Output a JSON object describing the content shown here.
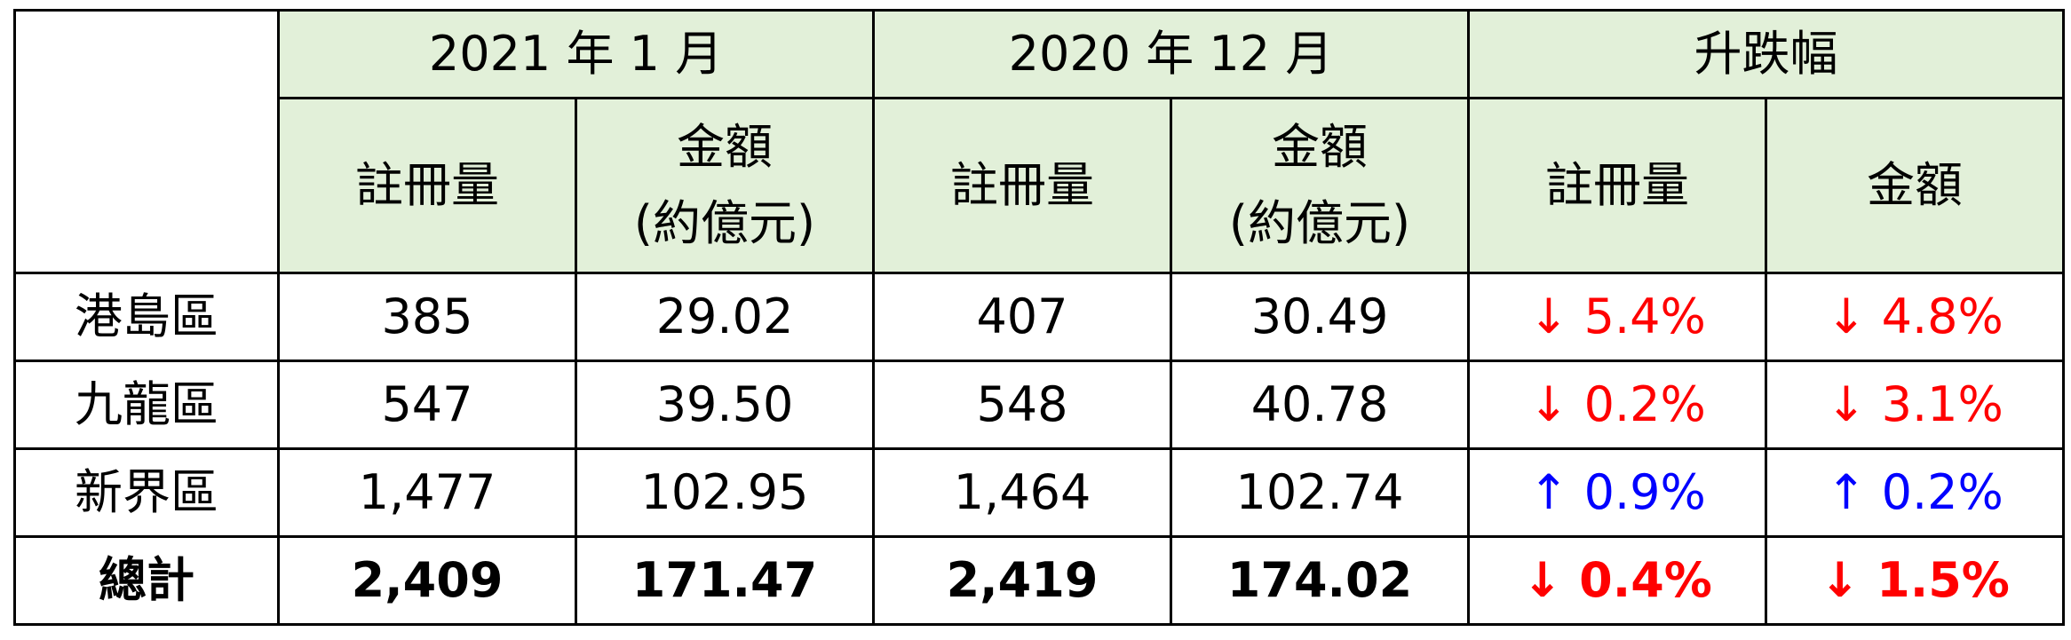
{
  "table": {
    "header": {
      "group_labels": [
        "2021 年 1 月",
        "2020 年 12 月",
        "升跌幅"
      ],
      "sub_labels": [
        [
          "註冊量"
        ],
        [
          "金額",
          "(約億元)"
        ],
        [
          "註冊量"
        ],
        [
          "金額",
          "(約億元)"
        ],
        [
          "註冊量"
        ],
        [
          "金額"
        ]
      ]
    },
    "rows": [
      [
        "港島區",
        "385",
        "29.02",
        "407",
        "30.49",
        "↓ 5.4%",
        "↓ 4.8%"
      ],
      [
        "九龍區",
        "547",
        "39.50",
        "548",
        "40.78",
        "↓ 0.2%",
        "↓ 3.1%"
      ],
      [
        "新界區",
        "1,477",
        "102.95",
        "1,464",
        "102.74",
        "↑ 0.9%",
        "↑ 0.2%"
      ],
      [
        "總計",
        "2,409",
        "171.47",
        "2,419",
        "174.02",
        "↓ 0.4%",
        "↓ 1.5%"
      ]
    ]
  }
}
